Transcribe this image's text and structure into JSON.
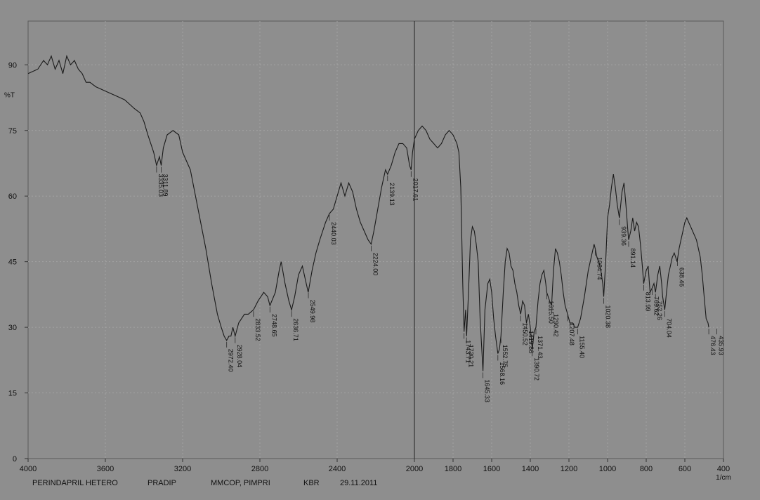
{
  "chart_data": {
    "type": "line",
    "title": "",
    "ylabel": "%T",
    "xlabel": "1/cm",
    "xlim": [
      4000,
      400
    ],
    "ylim": [
      0,
      100
    ],
    "x_ticks": [
      4000,
      3600,
      3200,
      2800,
      2400,
      2000,
      1800,
      1600,
      1400,
      1200,
      1000,
      800,
      600,
      400
    ],
    "y_ticks": [
      0,
      15,
      30,
      45,
      60,
      75,
      90
    ],
    "grid": true,
    "series": [
      {
        "points": [
          [
            4000,
            88
          ],
          [
            3950,
            89
          ],
          [
            3920,
            91
          ],
          [
            3900,
            90
          ],
          [
            3880,
            92
          ],
          [
            3860,
            89
          ],
          [
            3840,
            91
          ],
          [
            3820,
            88
          ],
          [
            3800,
            92
          ],
          [
            3780,
            90
          ],
          [
            3760,
            91
          ],
          [
            3740,
            89
          ],
          [
            3720,
            88
          ],
          [
            3700,
            86
          ],
          [
            3680,
            86
          ],
          [
            3650,
            85
          ],
          [
            3600,
            84
          ],
          [
            3550,
            83
          ],
          [
            3500,
            82
          ],
          [
            3450,
            80
          ],
          [
            3420,
            79
          ],
          [
            3400,
            77
          ],
          [
            3380,
            74
          ],
          [
            3350,
            70
          ],
          [
            3335,
            67
          ],
          [
            3320,
            69
          ],
          [
            3311,
            67
          ],
          [
            3300,
            71
          ],
          [
            3280,
            74
          ],
          [
            3250,
            75
          ],
          [
            3220,
            74
          ],
          [
            3200,
            70
          ],
          [
            3160,
            66
          ],
          [
            3120,
            57
          ],
          [
            3080,
            48
          ],
          [
            3050,
            40
          ],
          [
            3020,
            33
          ],
          [
            3000,
            30
          ],
          [
            2985,
            28
          ],
          [
            2972,
            27
          ],
          [
            2960,
            28
          ],
          [
            2950,
            28
          ],
          [
            2940,
            30
          ],
          [
            2928,
            28
          ],
          [
            2910,
            31
          ],
          [
            2880,
            33
          ],
          [
            2860,
            33
          ],
          [
            2833,
            34
          ],
          [
            2810,
            36
          ],
          [
            2780,
            38
          ],
          [
            2760,
            37
          ],
          [
            2748,
            35
          ],
          [
            2720,
            38
          ],
          [
            2700,
            43
          ],
          [
            2690,
            45
          ],
          [
            2670,
            40
          ],
          [
            2650,
            36
          ],
          [
            2636,
            34
          ],
          [
            2620,
            37
          ],
          [
            2600,
            42
          ],
          [
            2580,
            44
          ],
          [
            2565,
            41
          ],
          [
            2550,
            38
          ],
          [
            2530,
            43
          ],
          [
            2510,
            47
          ],
          [
            2490,
            50
          ],
          [
            2460,
            54
          ],
          [
            2440,
            56
          ],
          [
            2420,
            57
          ],
          [
            2400,
            60
          ],
          [
            2380,
            63
          ],
          [
            2360,
            60
          ],
          [
            2340,
            63
          ],
          [
            2320,
            61
          ],
          [
            2300,
            57
          ],
          [
            2280,
            54
          ],
          [
            2260,
            52
          ],
          [
            2240,
            50
          ],
          [
            2224,
            49
          ],
          [
            2210,
            52
          ],
          [
            2190,
            57
          ],
          [
            2170,
            62
          ],
          [
            2150,
            66
          ],
          [
            2139,
            65
          ],
          [
            2120,
            67
          ],
          [
            2100,
            70
          ],
          [
            2080,
            72
          ],
          [
            2060,
            72
          ],
          [
            2040,
            71
          ],
          [
            2025,
            67
          ],
          [
            2017,
            66
          ],
          [
            2010,
            70
          ],
          [
            2000,
            73
          ],
          [
            1980,
            75
          ],
          [
            1960,
            76
          ],
          [
            1940,
            75
          ],
          [
            1920,
            73
          ],
          [
            1900,
            72
          ],
          [
            1880,
            71
          ],
          [
            1860,
            72
          ],
          [
            1840,
            74
          ],
          [
            1820,
            75
          ],
          [
            1800,
            74
          ],
          [
            1780,
            72
          ],
          [
            1770,
            70
          ],
          [
            1760,
            62
          ],
          [
            1750,
            40
          ],
          [
            1743,
            29
          ],
          [
            1735,
            34
          ],
          [
            1730,
            28
          ],
          [
            1720,
            38
          ],
          [
            1710,
            50
          ],
          [
            1700,
            53
          ],
          [
            1690,
            52
          ],
          [
            1680,
            49
          ],
          [
            1670,
            45
          ],
          [
            1660,
            32
          ],
          [
            1645,
            20
          ],
          [
            1635,
            34
          ],
          [
            1620,
            40
          ],
          [
            1610,
            41
          ],
          [
            1600,
            38
          ],
          [
            1590,
            32
          ],
          [
            1580,
            28
          ],
          [
            1568,
            24
          ],
          [
            1560,
            25
          ],
          [
            1552,
            28
          ],
          [
            1540,
            38
          ],
          [
            1530,
            45
          ],
          [
            1520,
            48
          ],
          [
            1510,
            47
          ],
          [
            1500,
            44
          ],
          [
            1490,
            43
          ],
          [
            1480,
            40
          ],
          [
            1470,
            38
          ],
          [
            1460,
            35
          ],
          [
            1450,
            33
          ],
          [
            1440,
            36
          ],
          [
            1430,
            35
          ],
          [
            1420,
            31
          ],
          [
            1410,
            33
          ],
          [
            1400,
            30
          ],
          [
            1390,
            25
          ],
          [
            1380,
            29
          ],
          [
            1371,
            30
          ],
          [
            1360,
            36
          ],
          [
            1350,
            40
          ],
          [
            1340,
            42
          ],
          [
            1330,
            43
          ],
          [
            1320,
            40
          ],
          [
            1315,
            38
          ],
          [
            1300,
            36
          ],
          [
            1290,
            35
          ],
          [
            1280,
            43
          ],
          [
            1270,
            48
          ],
          [
            1260,
            47
          ],
          [
            1250,
            45
          ],
          [
            1240,
            42
          ],
          [
            1230,
            38
          ],
          [
            1220,
            35
          ],
          [
            1207,
            33
          ],
          [
            1195,
            31
          ],
          [
            1180,
            31
          ],
          [
            1170,
            30
          ],
          [
            1155,
            30
          ],
          [
            1140,
            32
          ],
          [
            1120,
            37
          ],
          [
            1100,
            43
          ],
          [
            1090,
            45
          ],
          [
            1080,
            47
          ],
          [
            1070,
            49
          ],
          [
            1064,
            48
          ],
          [
            1055,
            46
          ],
          [
            1045,
            45
          ],
          [
            1035,
            43
          ],
          [
            1025,
            40
          ],
          [
            1020,
            37
          ],
          [
            1010,
            45
          ],
          [
            1000,
            55
          ],
          [
            990,
            58
          ],
          [
            980,
            62
          ],
          [
            970,
            65
          ],
          [
            960,
            62
          ],
          [
            950,
            58
          ],
          [
            939,
            55
          ],
          [
            925,
            61
          ],
          [
            915,
            63
          ],
          [
            905,
            58
          ],
          [
            895,
            52
          ],
          [
            891,
            50
          ],
          [
            880,
            52
          ],
          [
            870,
            55
          ],
          [
            860,
            52
          ],
          [
            850,
            54
          ],
          [
            840,
            53
          ],
          [
            830,
            49
          ],
          [
            820,
            44
          ],
          [
            813,
            40
          ],
          [
            800,
            43
          ],
          [
            790,
            44
          ],
          [
            785,
            41
          ],
          [
            780,
            38
          ],
          [
            769,
            39
          ],
          [
            760,
            40
          ],
          [
            752,
            38
          ],
          [
            740,
            42
          ],
          [
            730,
            44
          ],
          [
            720,
            40
          ],
          [
            715,
            37
          ],
          [
            704,
            34
          ],
          [
            695,
            38
          ],
          [
            685,
            42
          ],
          [
            675,
            44
          ],
          [
            665,
            46
          ],
          [
            655,
            47
          ],
          [
            640,
            45
          ],
          [
            630,
            48
          ],
          [
            620,
            50
          ],
          [
            610,
            52
          ],
          [
            600,
            54
          ],
          [
            590,
            55
          ],
          [
            580,
            54
          ],
          [
            570,
            53
          ],
          [
            560,
            52
          ],
          [
            550,
            51
          ],
          [
            540,
            50
          ],
          [
            530,
            48
          ],
          [
            520,
            46
          ],
          [
            510,
            42
          ],
          [
            500,
            37
          ],
          [
            490,
            32
          ],
          [
            480,
            31
          ],
          [
            476,
            30
          ]
        ]
      }
    ],
    "peak_labels": [
      {
        "x": 3335,
        "label": "3335.03"
      },
      {
        "x": 3311,
        "label": "3311.89"
      },
      {
        "x": 2972,
        "label": "2972.40"
      },
      {
        "x": 2928,
        "label": "2928.04"
      },
      {
        "x": 2833,
        "label": "2833.52"
      },
      {
        "x": 2748,
        "label": "2748.65"
      },
      {
        "x": 2636,
        "label": "2636.71"
      },
      {
        "x": 2549,
        "label": "2549.98"
      },
      {
        "x": 2440,
        "label": "2440.03"
      },
      {
        "x": 2224,
        "label": "2224.00"
      },
      {
        "x": 2139,
        "label": "2139.13"
      },
      {
        "x": 2017,
        "label": "2017.61"
      },
      {
        "x": 1743,
        "label": "1743.71"
      },
      {
        "x": 1730,
        "label": "1730.21"
      },
      {
        "x": 1645,
        "label": "1645.33"
      },
      {
        "x": 1568,
        "label": "1568.16"
      },
      {
        "x": 1552,
        "label": "1552.75"
      },
      {
        "x": 1450,
        "label": "1450.52"
      },
      {
        "x": 1419,
        "label": "1419.86"
      },
      {
        "x": 1390,
        "label": "1390.72"
      },
      {
        "x": 1371,
        "label": "1371.43"
      },
      {
        "x": 1315,
        "label": "1315.50"
      },
      {
        "x": 1290,
        "label": "1290.42"
      },
      {
        "x": 1207,
        "label": "1207.48"
      },
      {
        "x": 1155,
        "label": "1155.40"
      },
      {
        "x": 1064,
        "label": "1064.74"
      },
      {
        "x": 1020,
        "label": "1020.38"
      },
      {
        "x": 939,
        "label": "939.36"
      },
      {
        "x": 891,
        "label": "891.14"
      },
      {
        "x": 813,
        "label": "813.99"
      },
      {
        "x": 769,
        "label": "769.62"
      },
      {
        "x": 752,
        "label": "752.26"
      },
      {
        "x": 704,
        "label": "704.04"
      },
      {
        "x": 638,
        "label": "638.46"
      },
      {
        "x": 476,
        "label": "476.43"
      },
      {
        "x": 435,
        "label": "435.93"
      }
    ]
  },
  "footer": {
    "sample": "PERINDAPRIL HETERO",
    "operator": "PRADIP",
    "institute": "MMCOP, PIMPRI",
    "method": "KBR",
    "date": "29.11.2011"
  },
  "colors": {
    "background": "#8e8e8e",
    "line": "#1a1a1a",
    "grid": "#a3a3a3"
  }
}
